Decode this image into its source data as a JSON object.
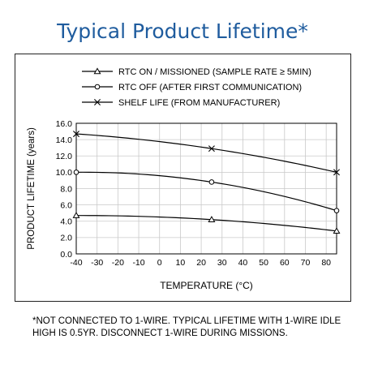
{
  "title": "Typical Product Lifetime*",
  "footnote": "*NOT CONNECTED TO 1-WIRE. TYPICAL LIFETIME WITH 1-WIRE IDLE HIGH IS 0.5YR. DISCONNECT 1-WIRE DURING MISSIONS.",
  "chart_data": {
    "type": "line",
    "xlabel": "TEMPERATURE (°C)",
    "ylabel": "PRODUCT LIFETIME (years)",
    "xlim": [
      -40,
      85
    ],
    "ylim": [
      0,
      16
    ],
    "xticks": [
      -40,
      -30,
      -20,
      -10,
      0,
      10,
      20,
      30,
      40,
      50,
      60,
      70,
      80
    ],
    "xtick_labels": [
      "-40",
      "-30",
      "-20",
      "-10",
      "0",
      "10",
      "20",
      "30",
      "40",
      "50",
      "60",
      "70",
      "80"
    ],
    "yticks": [
      0,
      2,
      4,
      6,
      8,
      10,
      12,
      14,
      16
    ],
    "ytick_labels": [
      "0.0",
      "2.0",
      "4.0",
      "6.0",
      "8.0",
      "10.0",
      "12.0",
      "14.0",
      "16.0"
    ],
    "grid": true,
    "legend_position": "top",
    "series": [
      {
        "name": "RTC ON / MISSIONED (SAMPLE RATE  ≥ 5MIN)",
        "marker": "triangle",
        "x": [
          -40,
          25,
          85
        ],
        "y": [
          4.7,
          4.2,
          2.8
        ]
      },
      {
        "name": "RTC OFF (AFTER FIRST COMMUNICATION)",
        "marker": "circle",
        "x": [
          -40,
          25,
          85
        ],
        "y": [
          10.0,
          8.8,
          5.3
        ]
      },
      {
        "name": "SHELF LIFE (FROM MANUFACTURER)",
        "marker": "x",
        "x": [
          -40,
          25,
          85
        ],
        "y": [
          14.7,
          12.9,
          10.0
        ]
      }
    ]
  }
}
